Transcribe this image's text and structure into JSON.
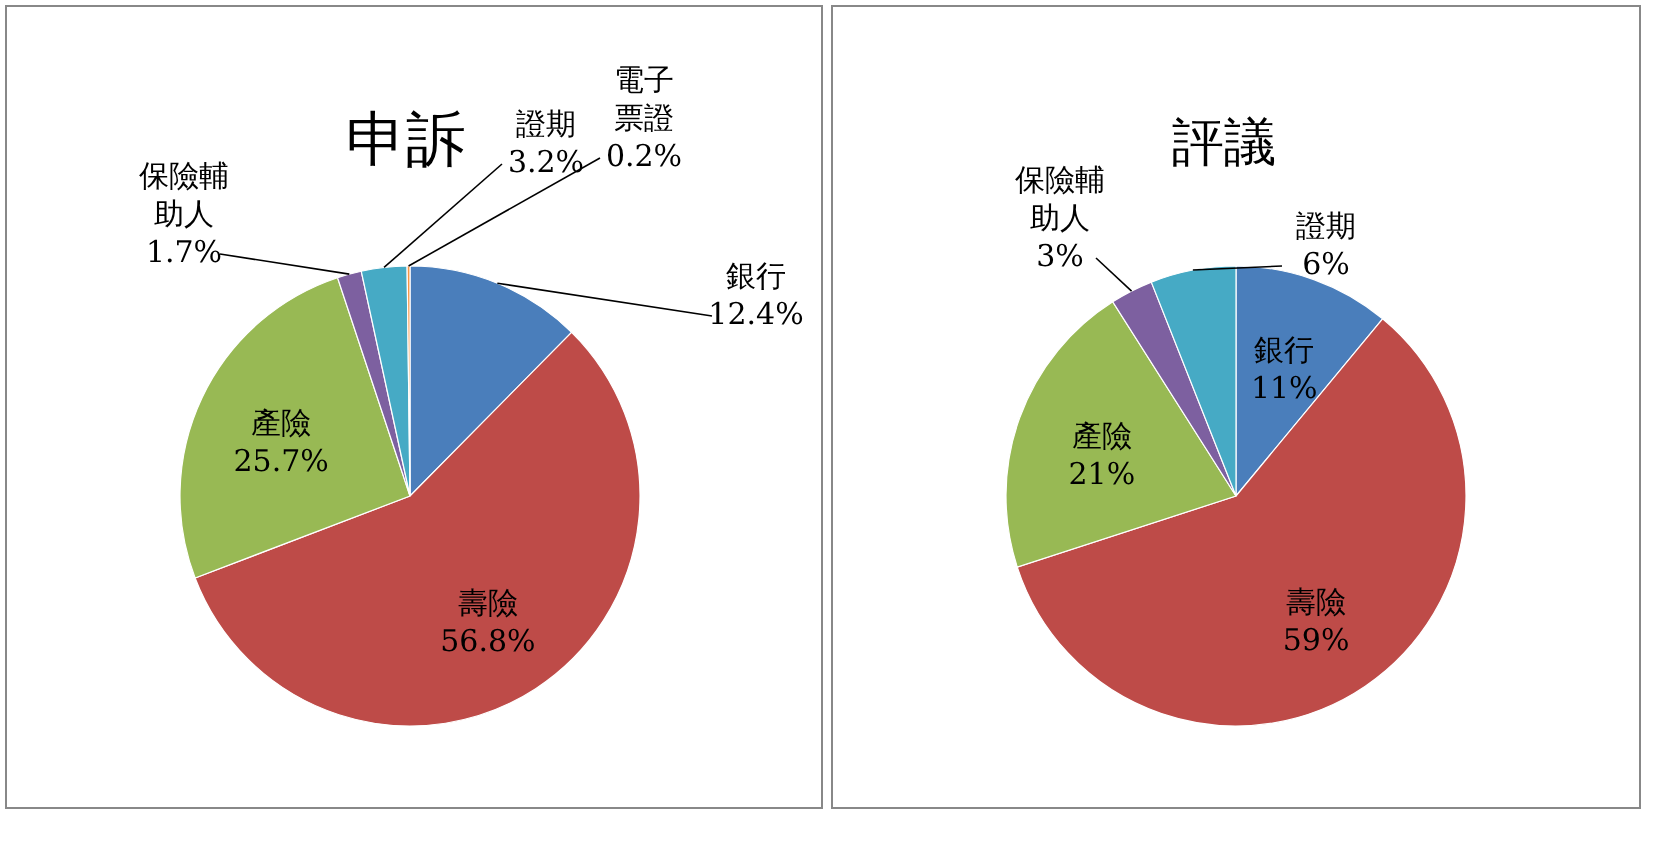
{
  "chart_data": [
    {
      "type": "pie",
      "title": "申訴",
      "categories": [
        "銀行",
        "壽險",
        "產險",
        "保險輔助人",
        "證期",
        "電子票證"
      ],
      "values": [
        12.4,
        56.8,
        25.7,
        1.7,
        3.2,
        0.2
      ],
      "colors": [
        "#4a7ebb",
        "#be4b48",
        "#98b954",
        "#7d60a0",
        "#46aac5",
        "#f79646"
      ],
      "value_labels": [
        "12.4%",
        "56.8%",
        "25.7%",
        "1.7%",
        "3.2%",
        "0.2%"
      ]
    },
    {
      "type": "pie",
      "title": "評議",
      "categories": [
        "銀行",
        "壽險",
        "產險",
        "保險輔助人",
        "證期"
      ],
      "values": [
        11,
        59,
        21,
        3,
        6
      ],
      "colors": [
        "#4a7ebb",
        "#be4b48",
        "#98b954",
        "#7d60a0",
        "#46aac5"
      ],
      "value_labels": [
        "11%",
        "59%",
        "21%",
        "3%",
        "6%"
      ]
    }
  ]
}
